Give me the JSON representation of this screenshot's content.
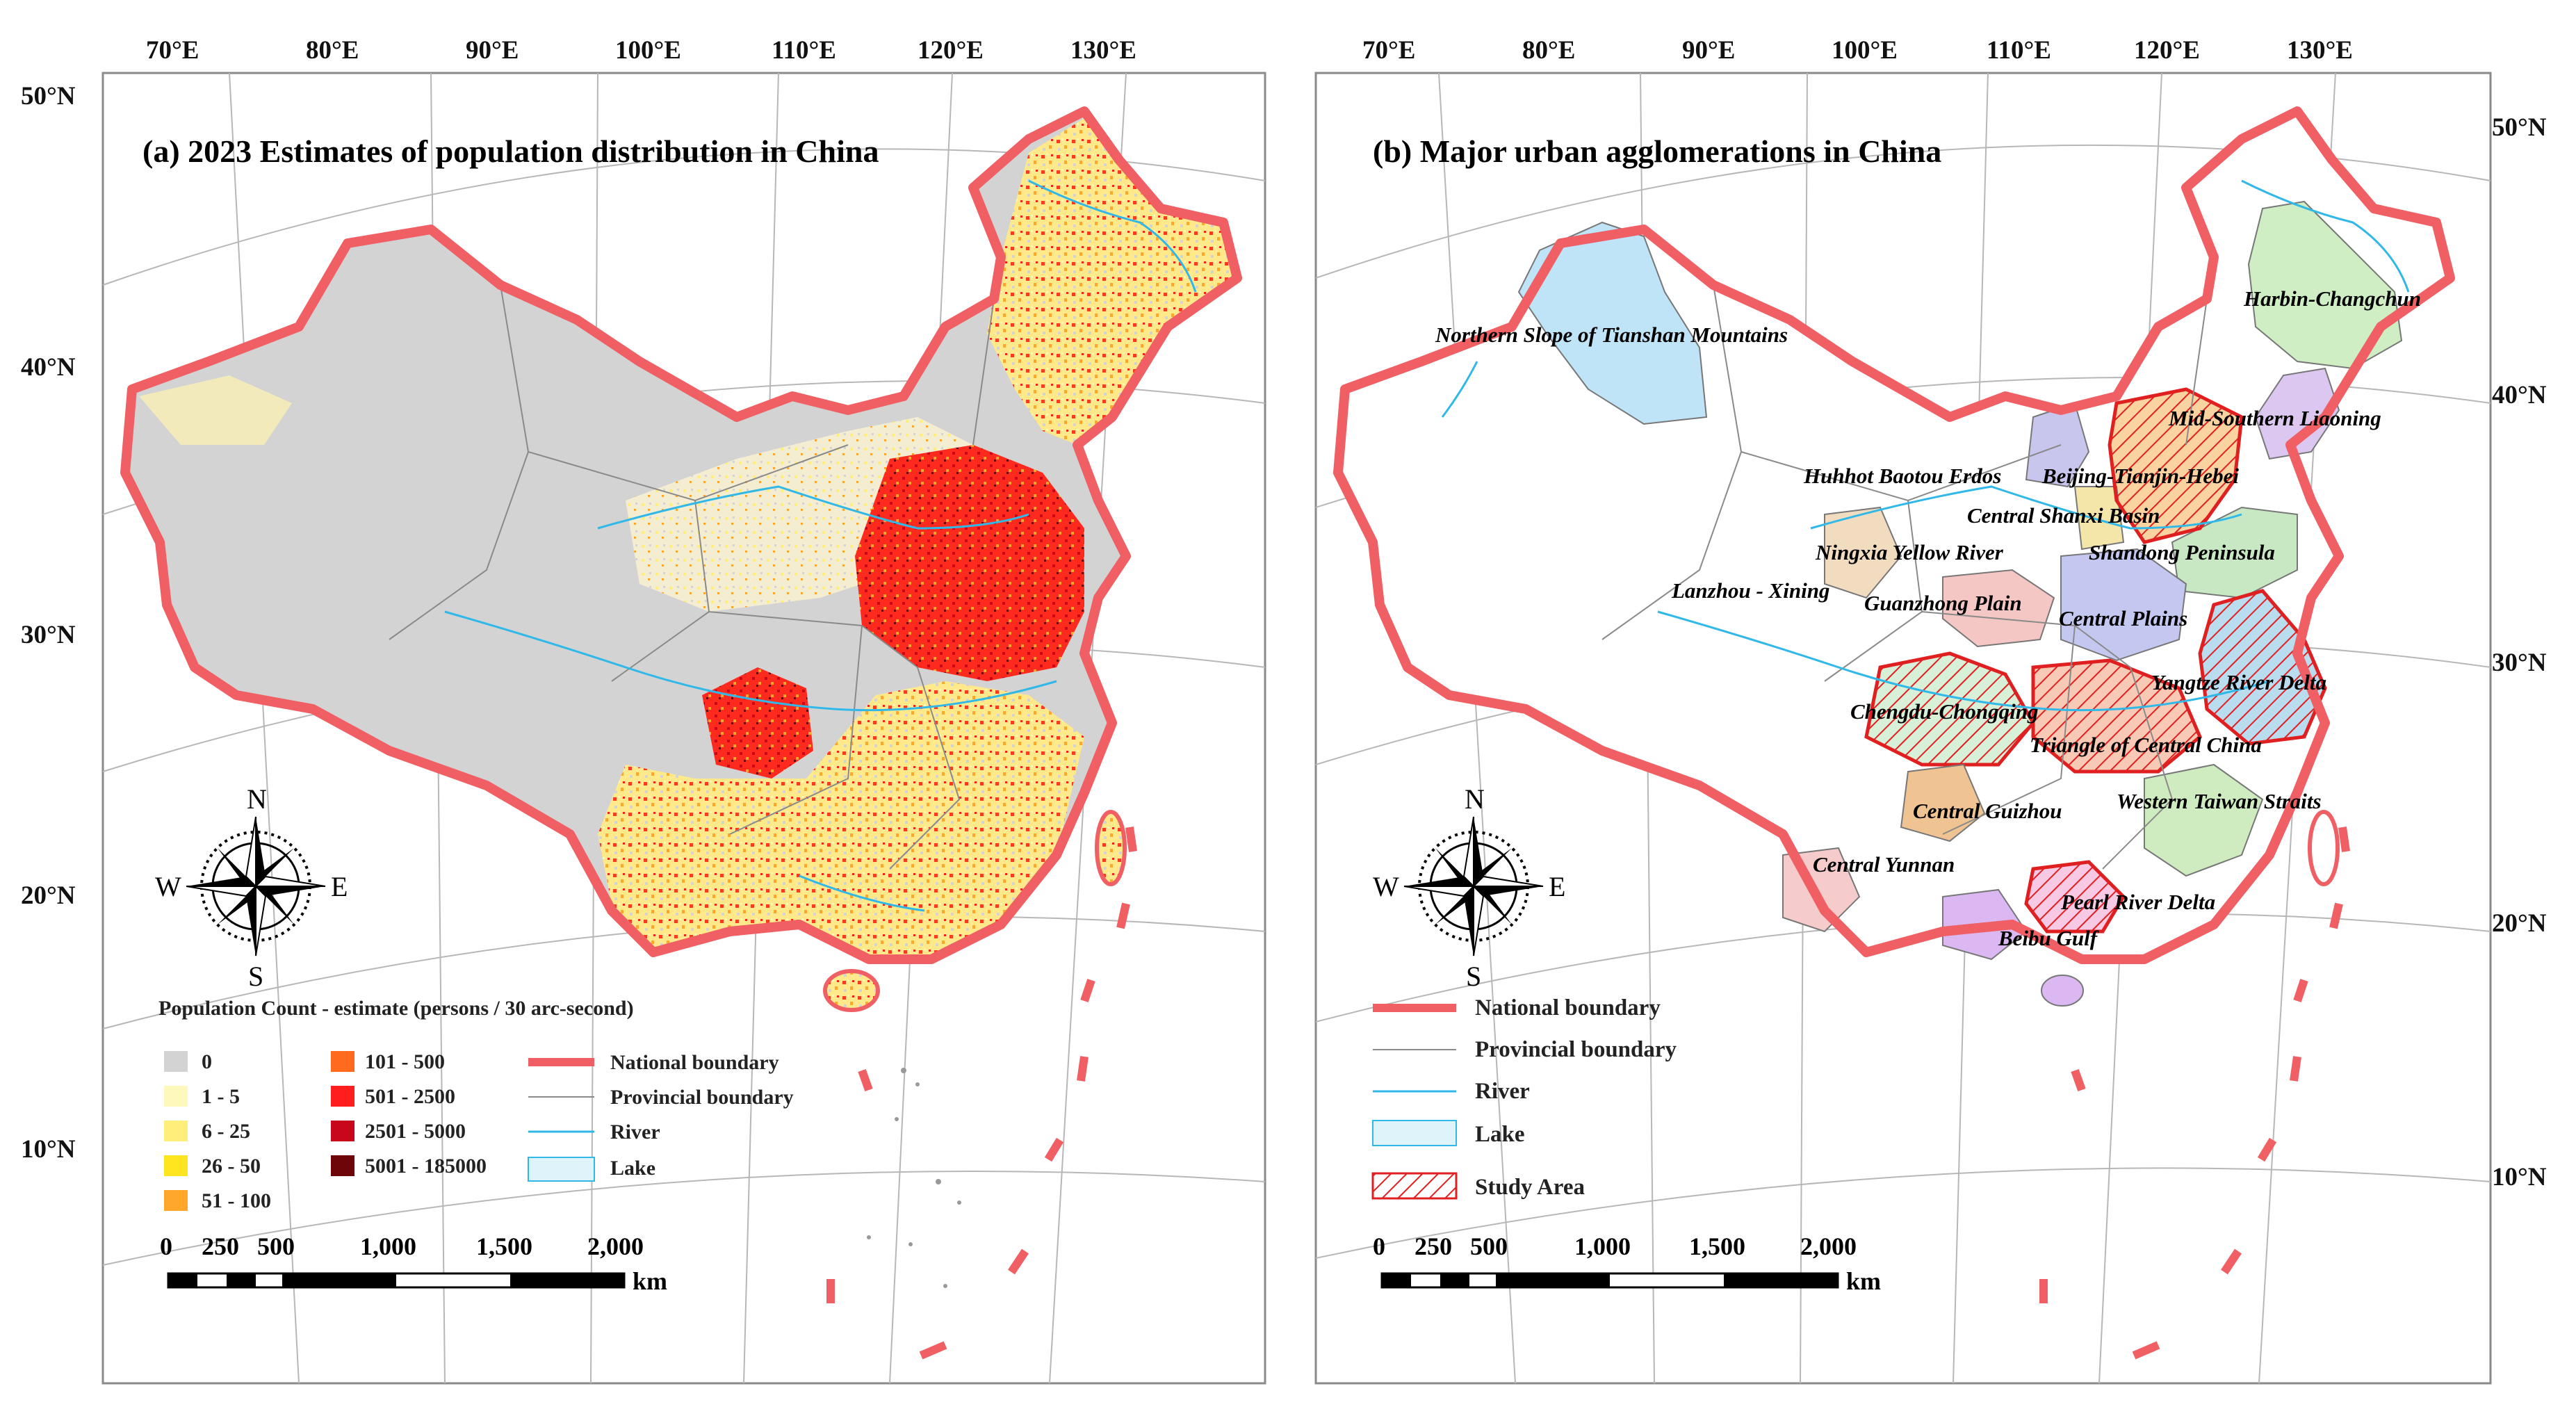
{
  "panel_a": {
    "title": "(a) 2023 Estimates of population distribution in China",
    "lon_labels": [
      "70°E",
      "80°E",
      "90°E",
      "100°E",
      "110°E",
      "120°E",
      "130°E"
    ],
    "lat_labels": [
      "50°N",
      "40°N",
      "30°N",
      "20°N",
      "10°N"
    ],
    "legend": {
      "title": "Population Count - estimate (persons / 30 arc-second)",
      "classes": [
        {
          "label": "0",
          "color": "#d3d3d3"
        },
        {
          "label": "1 - 5",
          "color": "#fff8bd"
        },
        {
          "label": "6 - 25",
          "color": "#ffef7a"
        },
        {
          "label": "26 - 50",
          "color": "#ffe51f"
        },
        {
          "label": "51 - 100",
          "color": "#ffa62b"
        },
        {
          "label": "101 - 500",
          "color": "#ff6a1f"
        },
        {
          "label": "501 - 2500",
          "color": "#ff1e1e"
        },
        {
          "label": "2501 - 5000",
          "color": "#c8081a"
        },
        {
          "label": "5001 - 185000",
          "color": "#6e0508"
        }
      ],
      "symbols": [
        {
          "label": "National boundary",
          "type": "national"
        },
        {
          "label": "Provincial boundary",
          "type": "provincial"
        },
        {
          "label": "River",
          "type": "river"
        },
        {
          "label": "Lake",
          "type": "lake"
        }
      ]
    },
    "compass": {
      "n": "N",
      "s": "S",
      "e": "E",
      "w": "W"
    },
    "scale": {
      "ticks": [
        "0",
        "250",
        "500",
        "1,000",
        "1,500",
        "2,000"
      ],
      "unit": "km"
    }
  },
  "panel_b": {
    "title": "(b) Major urban agglomerations in China",
    "lon_labels": [
      "70°E",
      "80°E",
      "90°E",
      "100°E",
      "110°E",
      "120°E",
      "130°E"
    ],
    "lat_labels": [
      "50°N",
      "40°N",
      "30°N",
      "20°N",
      "10°N"
    ],
    "regions": [
      {
        "name": "Northern Slope of Tianshan Mountains",
        "color": "#bfe3f7"
      },
      {
        "name": "Harbin-Changchun",
        "color": "#cfeec4"
      },
      {
        "name": "Mid-Southern Liaoning",
        "color": "#dcc7f0"
      },
      {
        "name": "Huhhot Baotou Erdos",
        "color": "#c9c6ee"
      },
      {
        "name": "Beijing-Tianjin-Hebei",
        "color": "#fbd3a0"
      },
      {
        "name": "Central Shanxi Basin",
        "color": "#f3e6a8"
      },
      {
        "name": "Ningxia Yellow River",
        "color": "#f1dcc0"
      },
      {
        "name": "Shandong Peninsula",
        "color": "#c8e8c3"
      },
      {
        "name": "Lanzhou - Xining",
        "color": "#ffffff"
      },
      {
        "name": "Guanzhong Plain",
        "color": "#f4c6c4"
      },
      {
        "name": "Central Plains",
        "color": "#c4c7f0"
      },
      {
        "name": "Yangtze River Delta",
        "color": "#b9dcee"
      },
      {
        "name": "Chengdu-Chongqing",
        "color": "#d9f0d8"
      },
      {
        "name": "Triangle of Central China",
        "color": "#f8c9b4"
      },
      {
        "name": "Central Guizhou",
        "color": "#f0c492"
      },
      {
        "name": "Western Taiwan Straits",
        "color": "#cfecc0"
      },
      {
        "name": "Central Yunnan",
        "color": "#f5cbcb"
      },
      {
        "name": "Pearl River Delta",
        "color": "#f7c9e4"
      },
      {
        "name": "Beibu Gulf",
        "color": "#dcb8f2"
      }
    ],
    "legend": [
      {
        "label": "National boundary",
        "type": "national"
      },
      {
        "label": "Provincial boundary",
        "type": "provincial"
      },
      {
        "label": "River",
        "type": "river"
      },
      {
        "label": "Lake",
        "type": "lake"
      },
      {
        "label": "Study Area",
        "type": "study"
      }
    ],
    "compass": {
      "n": "N",
      "s": "S",
      "e": "E",
      "w": "W"
    },
    "scale": {
      "ticks": [
        "0",
        "250",
        "500",
        "1,000",
        "1,500",
        "2,000"
      ],
      "unit": "km"
    }
  },
  "colors": {
    "national_boundary": "#ef5f64",
    "river": "#2fb8e8",
    "lake": "#dff3fb",
    "study_area": "#e02020",
    "province": "#8a8a8a"
  }
}
